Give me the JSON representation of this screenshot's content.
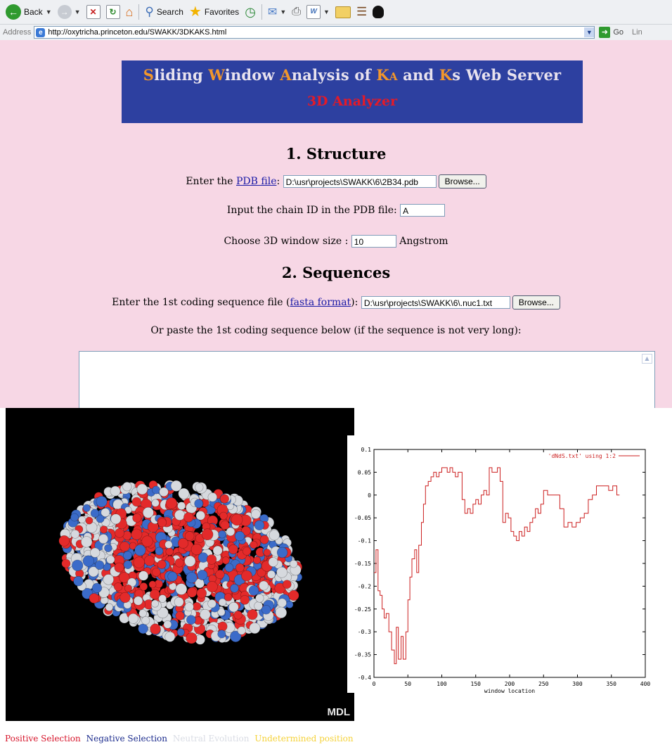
{
  "toolbar": {
    "back_label": "Back",
    "search_label": "Search",
    "favorites_label": "Favorites"
  },
  "address_bar": {
    "label": "Address",
    "url": "http://oxytricha.princeton.edu/SWAKK/3DKAKS.html",
    "go_label": "Go",
    "links_label": "Lin"
  },
  "banner": {
    "title_parts": [
      "S",
      "liding ",
      "W",
      "indow ",
      "A",
      "nalysis of ",
      "K",
      "A",
      " and ",
      "K",
      "s",
      " Web Server"
    ],
    "subtitle": "3D Analyzer",
    "title_color": "#e8e2ee",
    "accent_color": "#f1962c",
    "subtitle_color": "#e31a28",
    "background": "#2d40a0"
  },
  "structure": {
    "heading": "1. Structure",
    "pdb_prefix": "Enter the ",
    "pdb_link": "PDB file",
    "pdb_suffix": ":",
    "pdb_value": "D:\\usr\\projects\\SWAKK\\6\\2B34.pdb",
    "browse_label": "Browse...",
    "chain_label": "Input the chain ID in the PDB file:",
    "chain_value": "A",
    "window_label": "Choose 3D window size :",
    "window_value": "10",
    "window_unit": "Angstrom"
  },
  "sequences": {
    "heading": "2. Sequences",
    "seq1_prefix": "Enter the 1st coding sequence file (",
    "seq1_link": "fasta format",
    "seq1_suffix": "):",
    "seq1_value": "D:\\usr\\projects\\SWAKK\\6\\.nuc1.txt",
    "browse_label": "Browse...",
    "paste_label": "Or paste the 1st coding sequence below (if the sequence is not very long):",
    "textarea_value": ""
  },
  "molecule_view": {
    "logo": "MDL",
    "colors": {
      "positive": "#e32a2a",
      "negative": "#3b6bc9",
      "neutral": "#d6d9de",
      "background": "#000000"
    }
  },
  "chart_data": {
    "type": "line",
    "series": [
      {
        "name": "'dNdS.txt' using 1:2",
        "color": "#cc1f1f",
        "x": [
          0,
          3,
          6,
          9,
          12,
          15,
          18,
          22,
          26,
          30,
          33,
          36,
          40,
          43,
          47,
          50,
          53,
          56,
          60,
          63,
          66,
          70,
          73,
          76,
          80,
          84,
          88,
          92,
          96,
          100,
          104,
          108,
          112,
          116,
          120,
          124,
          127,
          130,
          134,
          138,
          142,
          146,
          150,
          154,
          158,
          162,
          166,
          170,
          174,
          178,
          182,
          186,
          190,
          194,
          198,
          202,
          206,
          210,
          214,
          218,
          222,
          226,
          230,
          234,
          238,
          242,
          246,
          250,
          256,
          262,
          268,
          274,
          280,
          286,
          292,
          298,
          304,
          310,
          316,
          322,
          328,
          334,
          340,
          346,
          352,
          358,
          362
        ],
        "y": [
          -0.17,
          -0.12,
          -0.21,
          -0.22,
          -0.25,
          -0.27,
          -0.26,
          -0.3,
          -0.34,
          -0.37,
          -0.29,
          -0.36,
          -0.31,
          -0.36,
          -0.3,
          -0.23,
          -0.18,
          -0.14,
          -0.12,
          -0.17,
          -0.11,
          -0.06,
          -0.02,
          0.02,
          0.03,
          0.04,
          0.05,
          0.04,
          0.05,
          0.06,
          0.06,
          0.05,
          0.06,
          0.05,
          0.04,
          0.05,
          0.05,
          -0.01,
          -0.04,
          -0.03,
          -0.04,
          -0.02,
          -0.01,
          -0.02,
          0.0,
          0.01,
          0.0,
          0.06,
          0.05,
          0.05,
          0.06,
          0.03,
          -0.06,
          -0.04,
          -0.05,
          -0.08,
          -0.09,
          -0.1,
          -0.08,
          -0.09,
          -0.07,
          -0.08,
          -0.06,
          -0.05,
          -0.03,
          -0.04,
          -0.02,
          0.01,
          0.0,
          0.0,
          0.0,
          -0.03,
          -0.07,
          -0.06,
          -0.07,
          -0.06,
          -0.05,
          -0.04,
          -0.01,
          0.0,
          0.02,
          0.02,
          0.02,
          0.01,
          0.02,
          0.0,
          0.0
        ]
      }
    ],
    "xlabel": "window location",
    "ylabel": "",
    "xlim": [
      0,
      400
    ],
    "ylim": [
      -0.4,
      0.1
    ],
    "xticks": [
      0,
      50,
      100,
      150,
      200,
      250,
      300,
      350,
      400
    ],
    "yticks": [
      0.1,
      0.05,
      0,
      -0.05,
      -0.1,
      -0.15,
      -0.2,
      -0.25,
      -0.3,
      -0.35,
      -0.4
    ],
    "legend_position": "top-right",
    "grid": false
  },
  "legend": {
    "positive": {
      "label": "Positive Selection",
      "color": "#d6142a"
    },
    "negative": {
      "label": "Negative Selection",
      "color": "#1a2a8c"
    },
    "neutral": {
      "label": "Neutral Evolution",
      "color": "#d9dce4"
    },
    "undetermined": {
      "label": "Undetermined position",
      "color": "#f5d23a"
    }
  }
}
